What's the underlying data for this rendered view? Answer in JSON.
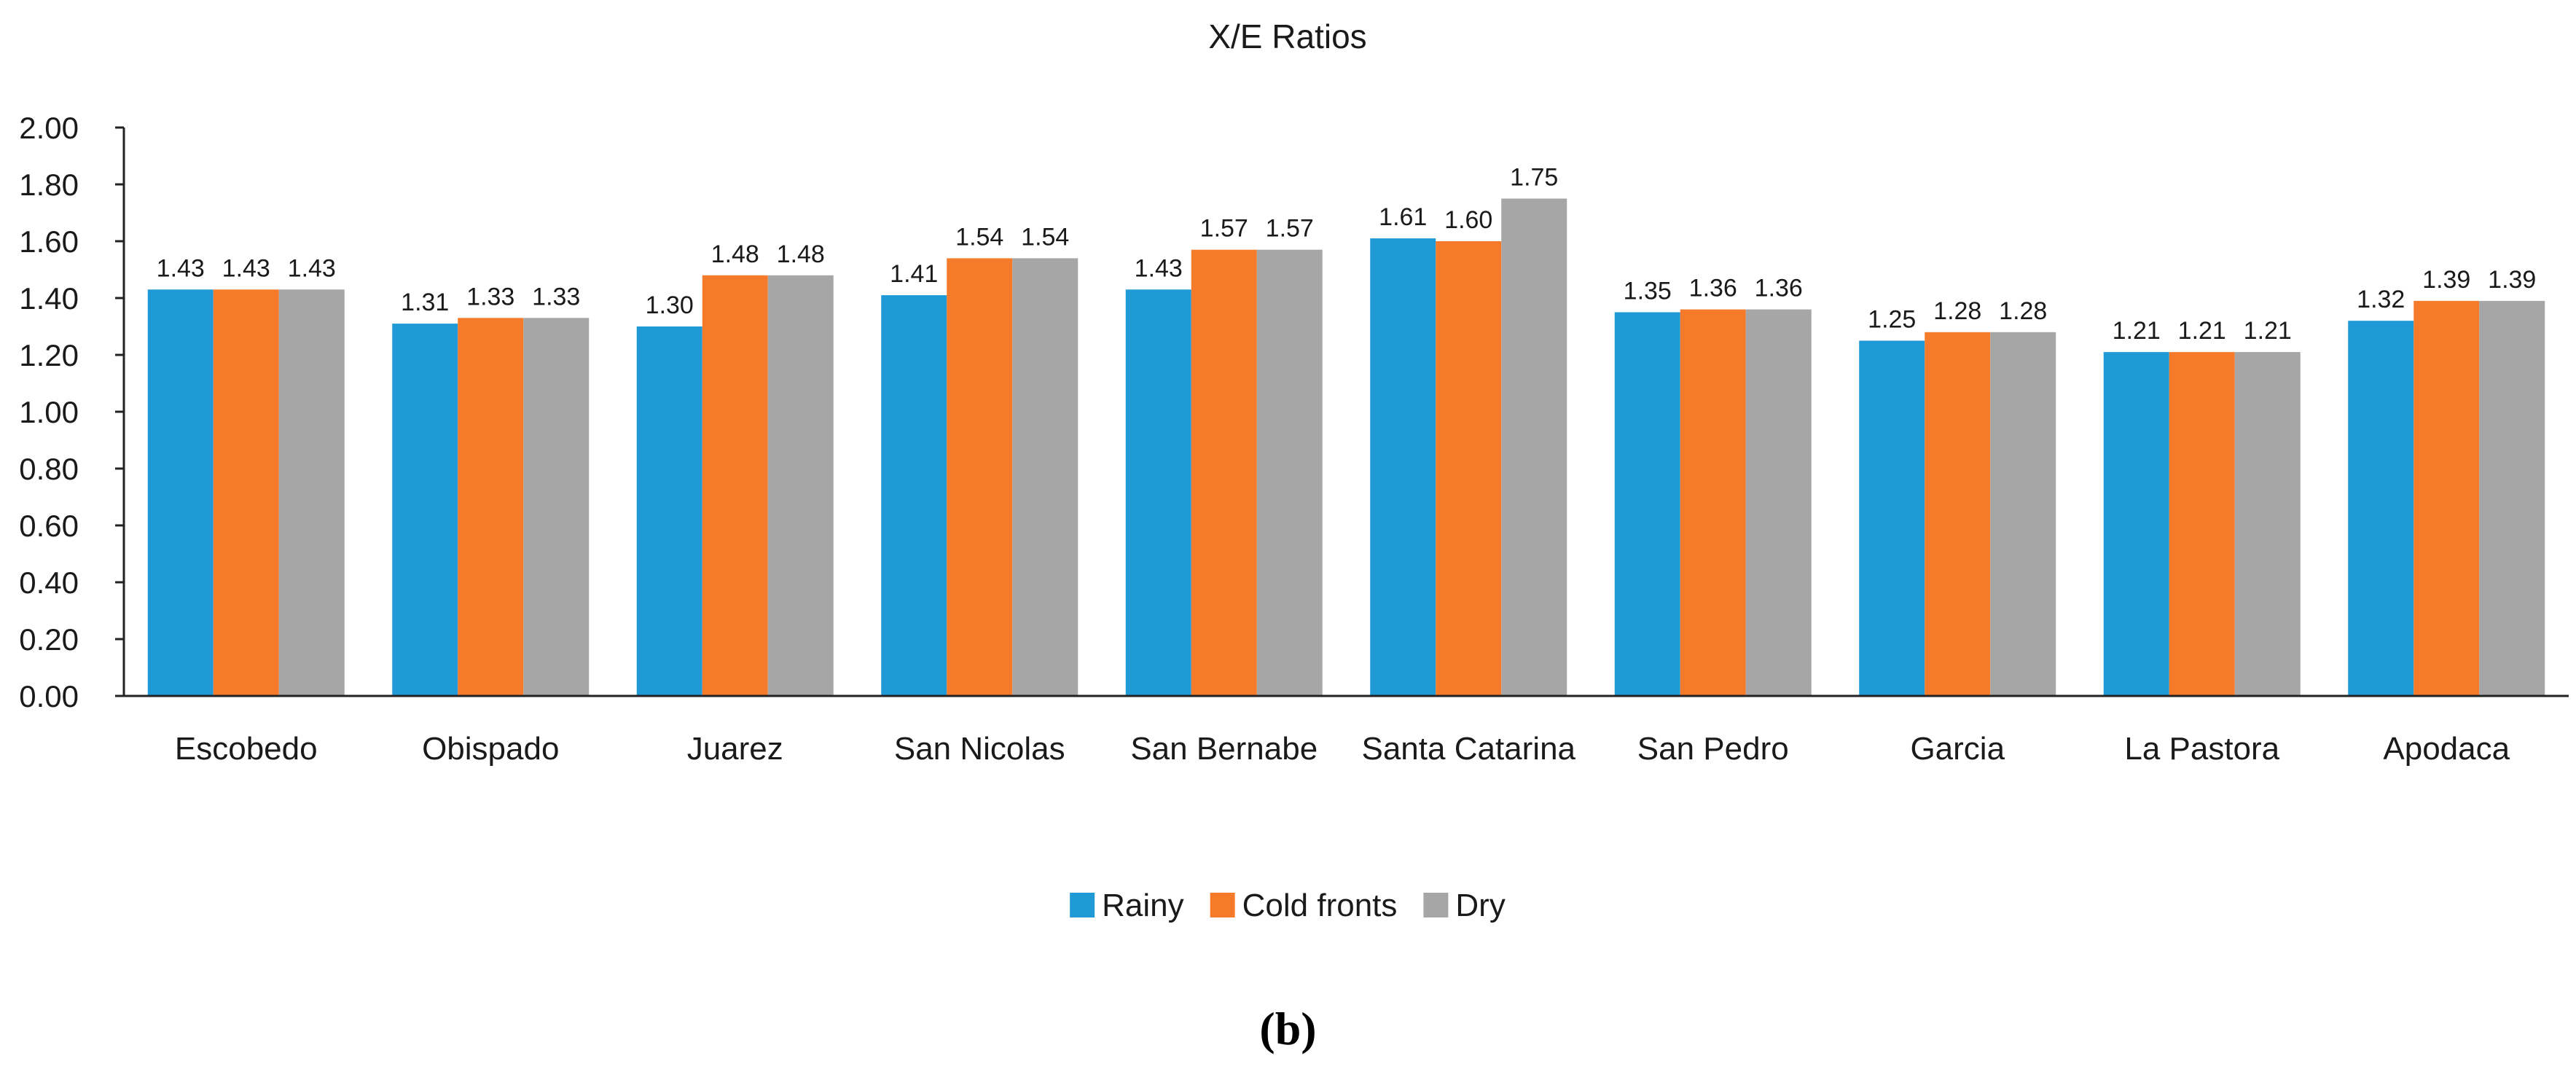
{
  "chart_data": {
    "type": "bar",
    "title": "X/E Ratios",
    "xlabel": "",
    "ylabel": "",
    "ylim": [
      0,
      2.0
    ],
    "yticks": [
      "0.00",
      "0.20",
      "0.40",
      "0.60",
      "0.80",
      "1.00",
      "1.20",
      "1.40",
      "1.60",
      "1.80",
      "2.00"
    ],
    "grid": false,
    "legend_position": "bottom",
    "categories": [
      "Escobedo",
      "Obispado",
      "Juarez",
      "San Nicolas",
      "San Bernabe",
      "Santa Catarina",
      "San Pedro",
      "Garcia",
      "La Pastora",
      "Apodaca"
    ],
    "series": [
      {
        "name": "Rainy",
        "color": "#1f9ad6",
        "values": [
          1.43,
          1.31,
          1.3,
          1.41,
          1.43,
          1.61,
          1.35,
          1.25,
          1.21,
          1.32
        ],
        "labels": [
          "1.43",
          "1.31",
          "1.30",
          "1.41",
          "1.43",
          "1.61",
          "1.35",
          "1.25",
          "1.21",
          "1.32"
        ]
      },
      {
        "name": "Cold fronts",
        "color": "#f57b2a",
        "values": [
          1.43,
          1.33,
          1.48,
          1.54,
          1.57,
          1.6,
          1.36,
          1.28,
          1.21,
          1.39
        ],
        "labels": [
          "1.43",
          "1.33",
          "1.48",
          "1.54",
          "1.57",
          "1.60",
          "1.36",
          "1.28",
          "1.21",
          "1.39"
        ]
      },
      {
        "name": "Dry",
        "color": "#a6a6a6",
        "values": [
          1.43,
          1.33,
          1.48,
          1.54,
          1.57,
          1.75,
          1.36,
          1.28,
          1.21,
          1.39
        ],
        "labels": [
          "1.43",
          "1.33",
          "1.48",
          "1.54",
          "1.57",
          "1.75",
          "1.36",
          "1.28",
          "1.21",
          "1.39"
        ]
      }
    ]
  },
  "figure": {
    "panel_label": "(b)"
  }
}
